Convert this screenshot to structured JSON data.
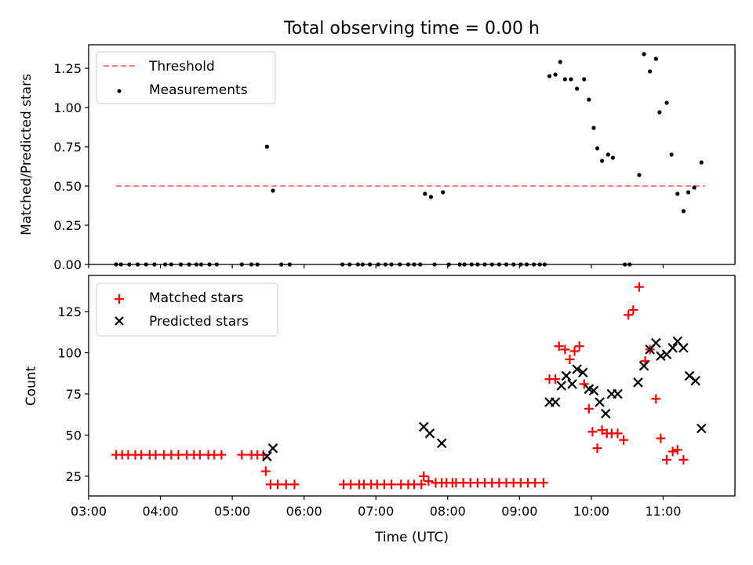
{
  "chart_data": [
    {
      "type": "scatter",
      "title": "Total observing time = 0.00 h",
      "ylabel": "Matched/Predicted stars",
      "xlabel": "",
      "xlim": [
        "03:00",
        "12:00"
      ],
      "ylim": [
        0,
        1.4
      ],
      "yticks": [
        0.0,
        0.25,
        0.5,
        0.75,
        1.0,
        1.25
      ],
      "ytick_labels": [
        "0.00",
        "0.25",
        "0.50",
        "0.75",
        "1.00",
        "1.25"
      ],
      "legend_position": "top-left",
      "series": [
        {
          "name": "Threshold",
          "kind": "dashed-line",
          "color": "#ff7f7f",
          "points": [
            [
              "03:23",
              0.5
            ],
            [
              "11:35",
              0.5
            ]
          ]
        },
        {
          "name": "Measurements",
          "kind": "dot",
          "color": "#000000",
          "points": [
            [
              "03:23",
              0
            ],
            [
              "03:27",
              0
            ],
            [
              "03:34",
              0
            ],
            [
              "03:41",
              0
            ],
            [
              "03:48",
              0
            ],
            [
              "03:55",
              0
            ],
            [
              "04:04",
              0
            ],
            [
              "04:09",
              0
            ],
            [
              "04:17",
              0
            ],
            [
              "04:24",
              0
            ],
            [
              "04:30",
              0
            ],
            [
              "04:34",
              0
            ],
            [
              "04:41",
              0
            ],
            [
              "04:47",
              0
            ],
            [
              "05:08",
              0
            ],
            [
              "05:16",
              0
            ],
            [
              "05:21",
              0
            ],
            [
              "05:29",
              0.75
            ],
            [
              "05:34",
              0.47
            ],
            [
              "05:41",
              0
            ],
            [
              "05:48",
              0
            ],
            [
              "06:32",
              0
            ],
            [
              "06:38",
              0
            ],
            [
              "06:45",
              0
            ],
            [
              "06:49",
              0
            ],
            [
              "06:55",
              0
            ],
            [
              "07:02",
              0
            ],
            [
              "07:08",
              0
            ],
            [
              "07:13",
              0
            ],
            [
              "07:20",
              0
            ],
            [
              "07:27",
              0
            ],
            [
              "07:32",
              0
            ],
            [
              "07:37",
              0
            ],
            [
              "07:41",
              0.45
            ],
            [
              "07:46",
              0.43
            ],
            [
              "07:49",
              0
            ],
            [
              "07:56",
              0.46
            ],
            [
              "08:01",
              0
            ],
            [
              "08:10",
              0
            ],
            [
              "08:14",
              0
            ],
            [
              "08:20",
              0
            ],
            [
              "08:25",
              0
            ],
            [
              "08:31",
              0
            ],
            [
              "08:37",
              0
            ],
            [
              "08:43",
              0
            ],
            [
              "08:49",
              0
            ],
            [
              "08:55",
              0
            ],
            [
              "09:01",
              0
            ],
            [
              "09:06",
              0
            ],
            [
              "09:12",
              0
            ],
            [
              "09:17",
              0
            ],
            [
              "09:21",
              0
            ],
            [
              "09:25",
              1.2
            ],
            [
              "09:30",
              1.21
            ],
            [
              "09:34",
              1.29
            ],
            [
              "09:38",
              1.18
            ],
            [
              "09:43",
              1.18
            ],
            [
              "09:48",
              1.12
            ],
            [
              "09:54",
              1.18
            ],
            [
              "09:58",
              1.05
            ],
            [
              "10:02",
              0.87
            ],
            [
              "10:05",
              0.74
            ],
            [
              "10:09",
              0.66
            ],
            [
              "10:14",
              0.7
            ],
            [
              "10:18",
              0.68
            ],
            [
              "10:28",
              0
            ],
            [
              "10:32",
              0
            ],
            [
              "10:40",
              0.57
            ],
            [
              "10:44",
              1.34
            ],
            [
              "10:49",
              1.23
            ],
            [
              "10:54",
              1.31
            ],
            [
              "10:57",
              0.97
            ],
            [
              "11:03",
              1.03
            ],
            [
              "11:07",
              0.7
            ],
            [
              "11:12",
              0.45
            ],
            [
              "11:17",
              0.34
            ],
            [
              "11:21",
              0.46
            ],
            [
              "11:26",
              0.49
            ],
            [
              "11:32",
              0.65
            ]
          ]
        }
      ]
    },
    {
      "type": "scatter",
      "title": "",
      "ylabel": "Count",
      "xlabel": "Time (UTC)",
      "xlim": [
        "03:00",
        "12:00"
      ],
      "xticks": [
        "03:00",
        "04:00",
        "05:00",
        "06:00",
        "07:00",
        "08:00",
        "09:00",
        "10:00",
        "11:00"
      ],
      "ylim": [
        13,
        147
      ],
      "yticks": [
        25,
        50,
        75,
        100,
        125
      ],
      "ytick_labels": [
        "25",
        "50",
        "75",
        "100",
        "125"
      ],
      "legend_position": "top-left",
      "series": [
        {
          "name": "Matched stars",
          "kind": "plus",
          "color": "#ff0000",
          "points": [
            [
              "03:23",
              38
            ],
            [
              "03:28",
              38
            ],
            [
              "03:33",
              38
            ],
            [
              "03:39",
              38
            ],
            [
              "03:44",
              38
            ],
            [
              "03:51",
              38
            ],
            [
              "03:56",
              38
            ],
            [
              "04:03",
              38
            ],
            [
              "04:09",
              38
            ],
            [
              "04:15",
              38
            ],
            [
              "04:22",
              38
            ],
            [
              "04:28",
              38
            ],
            [
              "04:33",
              38
            ],
            [
              "04:40",
              38
            ],
            [
              "04:45",
              38
            ],
            [
              "04:51",
              38
            ],
            [
              "05:08",
              38
            ],
            [
              "05:16",
              38
            ],
            [
              "05:21",
              38
            ],
            [
              "05:26",
              38
            ],
            [
              "05:28",
              28
            ],
            [
              "05:32",
              20
            ],
            [
              "05:38",
              20
            ],
            [
              "05:45",
              20
            ],
            [
              "05:52",
              20
            ],
            [
              "06:33",
              20
            ],
            [
              "06:39",
              20
            ],
            [
              "06:46",
              20
            ],
            [
              "06:50",
              20
            ],
            [
              "06:56",
              20
            ],
            [
              "07:01",
              20
            ],
            [
              "07:07",
              20
            ],
            [
              "07:13",
              20
            ],
            [
              "07:21",
              20
            ],
            [
              "07:27",
              20
            ],
            [
              "07:32",
              20
            ],
            [
              "07:38",
              20
            ],
            [
              "07:40",
              25
            ],
            [
              "07:44",
              22
            ],
            [
              "07:50",
              21
            ],
            [
              "07:55",
              21
            ],
            [
              "07:59",
              21
            ],
            [
              "08:04",
              21
            ],
            [
              "08:07",
              21
            ],
            [
              "08:13",
              21
            ],
            [
              "08:19",
              21
            ],
            [
              "08:25",
              21
            ],
            [
              "08:31",
              21
            ],
            [
              "08:37",
              21
            ],
            [
              "08:43",
              21
            ],
            [
              "08:49",
              21
            ],
            [
              "08:55",
              21
            ],
            [
              "09:01",
              21
            ],
            [
              "09:07",
              21
            ],
            [
              "09:13",
              21
            ],
            [
              "09:20",
              21
            ],
            [
              "09:25",
              84
            ],
            [
              "09:30",
              84
            ],
            [
              "09:33",
              104
            ],
            [
              "09:38",
              102
            ],
            [
              "09:42",
              96
            ],
            [
              "09:46",
              101
            ],
            [
              "09:50",
              104
            ],
            [
              "09:54",
              81
            ],
            [
              "09:58",
              66
            ],
            [
              "10:01",
              52
            ],
            [
              "10:05",
              42
            ],
            [
              "10:09",
              53
            ],
            [
              "10:13",
              51
            ],
            [
              "10:17",
              51
            ],
            [
              "10:22",
              51
            ],
            [
              "10:27",
              47
            ],
            [
              "10:31",
              123
            ],
            [
              "10:35",
              126
            ],
            [
              "10:40",
              140
            ],
            [
              "10:45",
              95
            ],
            [
              "10:49",
              102
            ],
            [
              "10:54",
              72
            ],
            [
              "10:58",
              48
            ],
            [
              "11:03",
              35
            ],
            [
              "11:08",
              40
            ],
            [
              "11:12",
              41
            ],
            [
              "11:17",
              35
            ]
          ]
        },
        {
          "name": "Predicted stars",
          "kind": "cross",
          "color": "#000000",
          "points": [
            [
              "05:29",
              37
            ],
            [
              "05:34",
              42
            ],
            [
              "07:40",
              55
            ],
            [
              "07:45",
              51
            ],
            [
              "07:55",
              45
            ],
            [
              "09:25",
              70
            ],
            [
              "09:30",
              70
            ],
            [
              "09:35",
              80
            ],
            [
              "09:39",
              86
            ],
            [
              "09:44",
              81
            ],
            [
              "09:48",
              90
            ],
            [
              "09:53",
              88
            ],
            [
              "09:58",
              78
            ],
            [
              "10:02",
              77
            ],
            [
              "10:07",
              70
            ],
            [
              "10:12",
              63
            ],
            [
              "10:17",
              75
            ],
            [
              "10:22",
              75
            ],
            [
              "10:39",
              82
            ],
            [
              "10:44",
              92
            ],
            [
              "10:49",
              102
            ],
            [
              "10:54",
              106
            ],
            [
              "10:58",
              98
            ],
            [
              "11:03",
              99
            ],
            [
              "11:08",
              103
            ],
            [
              "11:12",
              107
            ],
            [
              "11:17",
              103
            ],
            [
              "11:22",
              86
            ],
            [
              "11:27",
              83
            ],
            [
              "11:32",
              54
            ]
          ]
        }
      ]
    }
  ]
}
